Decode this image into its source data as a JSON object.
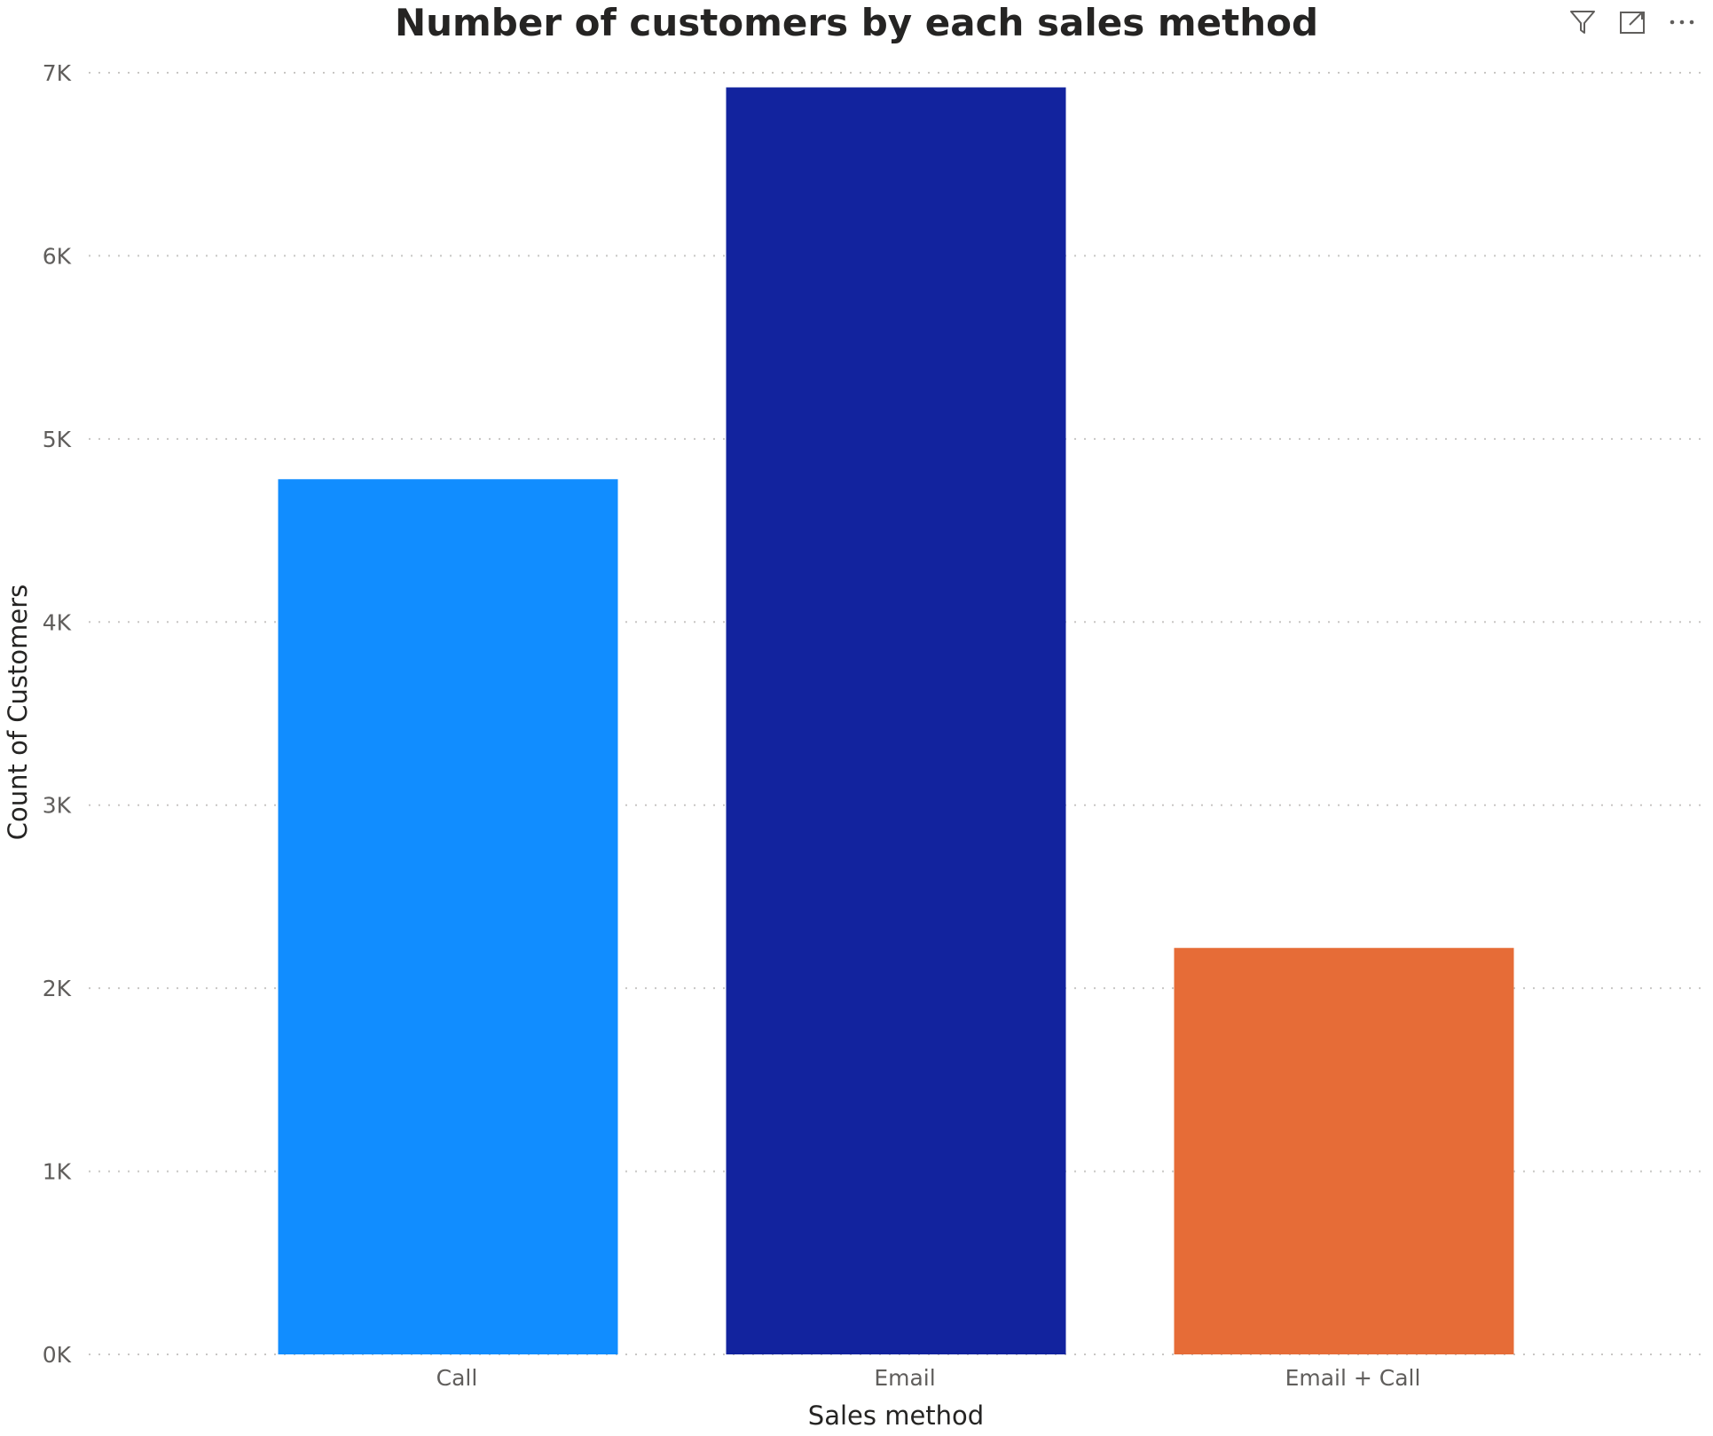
{
  "header": {
    "icons": [
      "filter-icon",
      "focus-mode-icon",
      "more-options-icon"
    ]
  },
  "chart_data": {
    "type": "bar",
    "title": "Number of customers by each sales method",
    "xlabel": "Sales method",
    "ylabel": "Count of Customers",
    "categories": [
      "Call",
      "Email",
      "Email + Call"
    ],
    "values": [
      4780,
      6920,
      2220
    ],
    "colors": [
      "#118DFF",
      "#12239E",
      "#E66C37"
    ],
    "ylim": [
      0,
      7000
    ],
    "yticks": [
      0,
      1000,
      2000,
      3000,
      4000,
      5000,
      6000,
      7000
    ],
    "ytick_labels": [
      "0K",
      "1K",
      "2K",
      "3K",
      "4K",
      "5K",
      "6K",
      "7K"
    ],
    "grid": true,
    "grid_style": "dotted",
    "legend": "none"
  }
}
